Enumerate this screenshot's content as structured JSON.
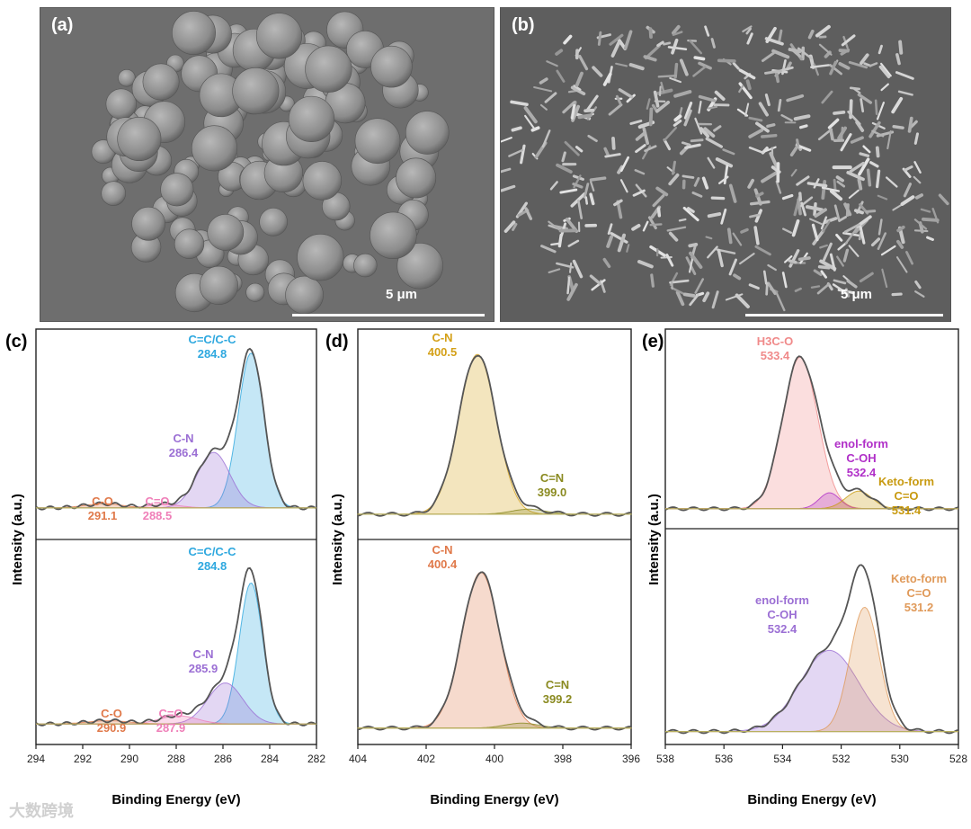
{
  "panels": {
    "a": {
      "label": "(a)",
      "scale": "5 μm"
    },
    "b": {
      "label": "(b)",
      "scale": "5 μm"
    },
    "c": {
      "label": "(c)"
    },
    "d": {
      "label": "(d)"
    },
    "e": {
      "label": "(e)"
    }
  },
  "watermark": "大数跨境",
  "colors": {
    "c_cc": "#2ea8df",
    "c_cn": "#9b6fd4",
    "c_co": "#e0794a",
    "c_c_o": "#ef7fb8",
    "d_cn_top": "#d4a017",
    "d_cn_bot": "#e0794a",
    "d_c_n": "#8a8a20",
    "e_h3co": "#f08a8a",
    "e_enol": "#8a1a9a",
    "e_keto": "#c89a10"
  },
  "chart_data": [
    {
      "type": "line",
      "panel": "c",
      "xlabel": "Binding Energy (eV)",
      "ylabel": "Intensity (a.u.)",
      "xlim": [
        294,
        282
      ],
      "x_reversed": true,
      "xticks": [
        "294",
        "292",
        "290",
        "288",
        "286",
        "284",
        "282"
      ],
      "spectra": [
        {
          "position": "top",
          "peaks": [
            {
              "label": "C=C/C-C",
              "value": "284.8",
              "center": 284.8,
              "height": 0.92,
              "width": 0.55,
              "color": "#2ea8df"
            },
            {
              "label": "C-N",
              "value": "286.4",
              "center": 286.4,
              "height": 0.33,
              "width": 0.7,
              "color": "#9b6fd4"
            },
            {
              "label": "C=O",
              "value": "288.5",
              "center": 288.5,
              "height": 0.02,
              "width": 0.7,
              "color": "#ef7fb8"
            },
            {
              "label": "C-O",
              "value": "291.1",
              "center": 291.1,
              "height": 0.025,
              "width": 0.8,
              "color": "#e0794a"
            }
          ]
        },
        {
          "position": "bottom",
          "peaks": [
            {
              "label": "C=C/C-C",
              "value": "284.8",
              "center": 284.8,
              "height": 0.86,
              "width": 0.5,
              "color": "#2ea8df"
            },
            {
              "label": "C-N",
              "value": "285.9",
              "center": 285.9,
              "height": 0.25,
              "width": 0.75,
              "color": "#9b6fd4"
            },
            {
              "label": "C=O",
              "value": "287.9",
              "center": 287.9,
              "height": 0.05,
              "width": 0.8,
              "color": "#ef7fb8"
            },
            {
              "label": "C-O",
              "value": "290.9",
              "center": 290.9,
              "height": 0.02,
              "width": 0.9,
              "color": "#e0794a"
            }
          ]
        }
      ]
    },
    {
      "type": "line",
      "panel": "d",
      "xlabel": "Binding Energy (eV)",
      "ylabel": "Intensity (a.u.)",
      "xlim": [
        404,
        396
      ],
      "x_reversed": true,
      "xticks": [
        "404",
        "402",
        "400",
        "398",
        "396"
      ],
      "spectra": [
        {
          "position": "top",
          "peaks": [
            {
              "label": "C-N",
              "value": "400.5",
              "center": 400.5,
              "height": 0.95,
              "width": 0.55,
              "color": "#d4a017"
            },
            {
              "label": "C=N",
              "value": "399.0",
              "center": 399.0,
              "height": 0.03,
              "width": 0.5,
              "color": "#8a8a20"
            }
          ]
        },
        {
          "position": "bottom",
          "peaks": [
            {
              "label": "C-N",
              "value": "400.4",
              "center": 400.4,
              "height": 0.95,
              "width": 0.55,
              "color": "#e0794a"
            },
            {
              "label": "C=N",
              "value": "399.2",
              "center": 399.2,
              "height": 0.03,
              "width": 0.5,
              "color": "#8a8a20"
            }
          ]
        }
      ]
    },
    {
      "type": "line",
      "panel": "e",
      "xlabel": "Binding Energy (eV)",
      "ylabel": "Intensity (a.u.)",
      "xlim": [
        538,
        528
      ],
      "x_reversed": true,
      "xticks": [
        "538",
        "536",
        "534",
        "532",
        "530",
        "528"
      ],
      "spectra": [
        {
          "position": "top",
          "peaks": [
            {
              "label": "H3C-O",
              "value": "533.4",
              "center": 533.4,
              "height": 0.95,
              "width": 0.6,
              "color": "#f08a8a"
            },
            {
              "label": "enol-form C-OH",
              "value": "532.4",
              "center": 532.4,
              "height": 0.1,
              "width": 0.35,
              "color": "#b02fc8"
            },
            {
              "label": "Keto-form C=O",
              "value": "531.4",
              "center": 531.4,
              "height": 0.11,
              "width": 0.45,
              "color": "#c89a10"
            }
          ]
        },
        {
          "position": "bottom",
          "peaks": [
            {
              "label": "enol-form C-OH",
              "value": "532.4",
              "center": 532.4,
              "height": 0.47,
              "width": 1.0,
              "color": "#9b6fd4"
            },
            {
              "label": "Keto-form C=O",
              "value": "531.2",
              "center": 531.2,
              "height": 0.72,
              "width": 0.5,
              "color": "#e09a5a"
            }
          ]
        }
      ]
    }
  ]
}
